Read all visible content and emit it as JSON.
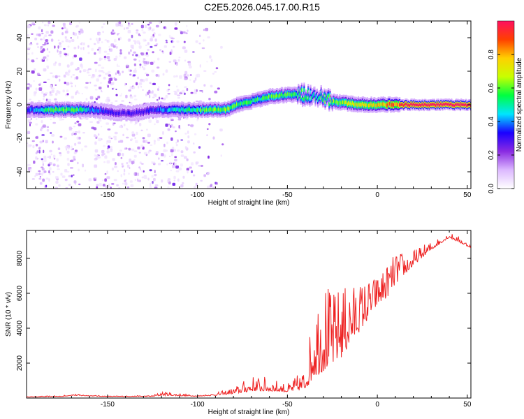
{
  "title": "C2E5.2026.045.17.00.R15",
  "chart_data": [
    {
      "type": "heatmap",
      "xlabel": "Height of straight line (km)",
      "ylabel": "Frequency (Hz)",
      "xlim": [
        -195,
        52
      ],
      "ylim": [
        -50,
        50
      ],
      "xticks": [
        -150,
        -100,
        -50,
        0,
        50
      ],
      "yticks": [
        -40,
        -20,
        0,
        20,
        40
      ],
      "colorbar": {
        "label": "Normalized spectral amplitude",
        "range": [
          0,
          1
        ],
        "ticks": [
          0.0,
          0.2,
          0.4,
          0.6,
          0.8
        ],
        "tick_labels": [
          "0.0",
          "0.2",
          "0.4",
          "0.6",
          "0.8"
        ],
        "colormap": [
          "#ffffff",
          "#dcb8ff",
          "#8a2be2",
          "#1a00ff",
          "#00e5ff",
          "#00ff40",
          "#c8ff00",
          "#ffd000",
          "#ff4000",
          "#ff1060"
        ]
      },
      "ridge": [
        {
          "x": -195,
          "f": -3,
          "a": 0.35
        },
        {
          "x": -185,
          "f": -3,
          "a": 0.55
        },
        {
          "x": -175,
          "f": -3,
          "a": 0.6
        },
        {
          "x": -165,
          "f": -3,
          "a": 0.55
        },
        {
          "x": -158,
          "f": -3,
          "a": 0.4
        },
        {
          "x": -145,
          "f": -5,
          "a": 0.3
        },
        {
          "x": -135,
          "f": -5,
          "a": 0.3
        },
        {
          "x": -125,
          "f": -3,
          "a": 0.35
        },
        {
          "x": -115,
          "f": -3,
          "a": 0.45
        },
        {
          "x": -105,
          "f": -3,
          "a": 0.55
        },
        {
          "x": -95,
          "f": -3,
          "a": 0.6
        },
        {
          "x": -85,
          "f": -3,
          "a": 0.65
        },
        {
          "x": -78,
          "f": 0,
          "a": 0.6
        },
        {
          "x": -70,
          "f": 2,
          "a": 0.55
        },
        {
          "x": -60,
          "f": 5,
          "a": 0.6
        },
        {
          "x": -50,
          "f": 6,
          "a": 0.6
        },
        {
          "x": -42,
          "f": 6,
          "a": 0.55
        },
        {
          "x": -36,
          "f": 5,
          "a": 0.5
        },
        {
          "x": -30,
          "f": 4,
          "a": 0.55
        },
        {
          "x": -25,
          "f": 2,
          "a": 0.65
        },
        {
          "x": -18,
          "f": 1,
          "a": 0.7
        },
        {
          "x": -10,
          "f": 0,
          "a": 0.7
        },
        {
          "x": -2,
          "f": 0,
          "a": 0.75
        },
        {
          "x": 5,
          "f": 0,
          "a": 0.85
        },
        {
          "x": 12,
          "f": 0,
          "a": 0.95
        },
        {
          "x": 20,
          "f": 0,
          "a": 1.0
        },
        {
          "x": 52,
          "f": 0,
          "a": 1.0
        }
      ]
    },
    {
      "type": "line",
      "xlabel": "Height of straight line (km)",
      "ylabel": "SNR (10 * v/v)",
      "xlim": [
        -195,
        52
      ],
      "ylim": [
        0,
        9600
      ],
      "xticks": [
        -150,
        -100,
        -50,
        0,
        50
      ],
      "yticks": [
        2000,
        4000,
        6000,
        8000
      ],
      "series": [
        {
          "name": "SNR",
          "color": "#ee2222",
          "envelope": [
            {
              "x": -195,
              "base": 60,
              "spike": 80
            },
            {
              "x": -175,
              "base": 80,
              "spike": 150
            },
            {
              "x": -170,
              "base": 150,
              "spike": 250
            },
            {
              "x": -150,
              "base": 80,
              "spike": 120
            },
            {
              "x": -125,
              "base": 90,
              "spike": 150
            },
            {
              "x": -120,
              "base": 150,
              "spike": 400
            },
            {
              "x": -100,
              "base": 100,
              "spike": 150
            },
            {
              "x": -90,
              "base": 150,
              "spike": 300
            },
            {
              "x": -80,
              "base": 250,
              "spike": 600
            },
            {
              "x": -70,
              "base": 400,
              "spike": 1300
            },
            {
              "x": -60,
              "base": 400,
              "spike": 1200
            },
            {
              "x": -50,
              "base": 350,
              "spike": 800
            },
            {
              "x": -40,
              "base": 500,
              "spike": 1800
            },
            {
              "x": -35,
              "base": 1200,
              "spike": 5500
            },
            {
              "x": -30,
              "base": 1500,
              "spike": 7000
            },
            {
              "x": -25,
              "base": 1800,
              "spike": 6000
            },
            {
              "x": -20,
              "base": 2300,
              "spike": 6500
            },
            {
              "x": -15,
              "base": 3000,
              "spike": 6500
            },
            {
              "x": -10,
              "base": 3800,
              "spike": 6600
            },
            {
              "x": -5,
              "base": 4500,
              "spike": 6800
            },
            {
              "x": 0,
              "base": 5300,
              "spike": 7000
            },
            {
              "x": 5,
              "base": 5700,
              "spike": 7600
            },
            {
              "x": 10,
              "base": 6500,
              "spike": 8300
            },
            {
              "x": 20,
              "base": 7600,
              "spike": 8500
            },
            {
              "x": 30,
              "base": 8500,
              "spike": 9000
            },
            {
              "x": 40,
              "base": 9200,
              "spike": 9500
            },
            {
              "x": 46,
              "base": 8900,
              "spike": 9200
            },
            {
              "x": 52,
              "base": 8600,
              "spike": 8800
            }
          ]
        }
      ]
    }
  ]
}
